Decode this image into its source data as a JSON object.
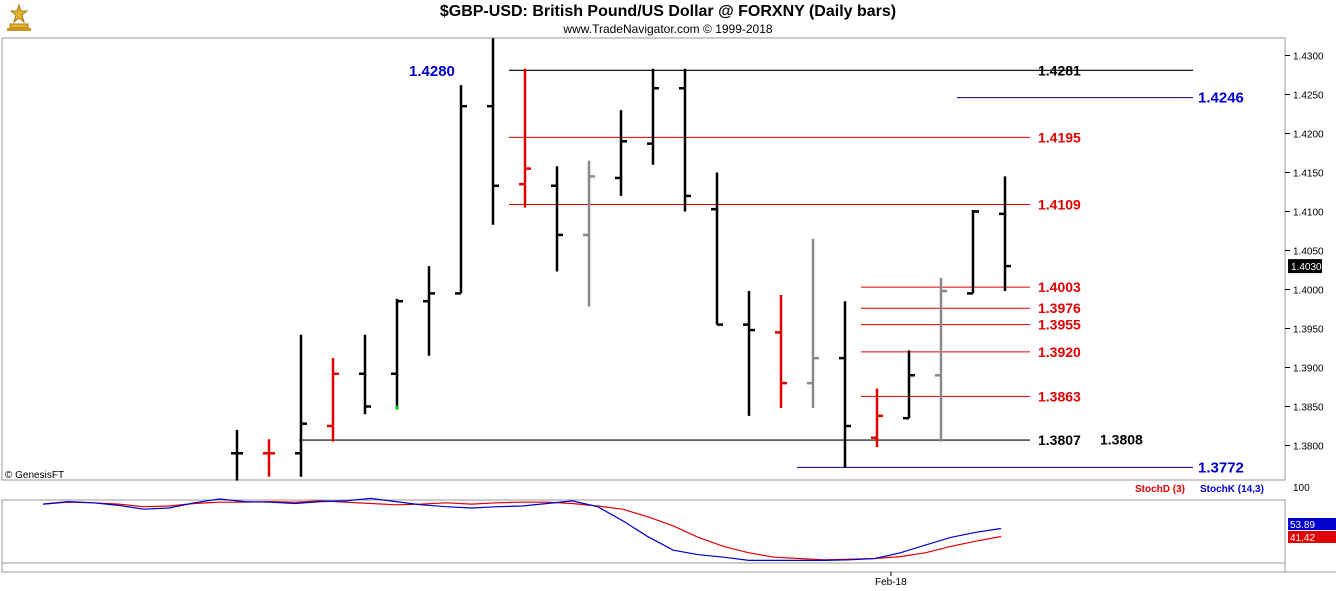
{
  "header": {
    "title": "$GBP-USD:  British Pound/US Dollar @ FORXNY  (Daily bars)",
    "subtitle": "www.TradeNavigator.com © 1999-2018"
  },
  "watermark": "© GenesisFT",
  "colors": {
    "black": "#000000",
    "red": "#e00000",
    "gray": "#8a8a8a",
    "blue": "#0000cc",
    "navy": "#00007a",
    "green": "#00c000"
  },
  "chart_data": [
    {
      "type": "ohlc",
      "title": "$GBP-USD:  British Pound/US Dollar @ FORXNY  (Daily bars)",
      "ylim": [
        1.3745,
        1.432
      ],
      "y_ticks": [
        "1.3800",
        "1.3850",
        "1.3900",
        "1.3950",
        "1.4000",
        "1.4050",
        "1.4100",
        "1.4150",
        "1.4200",
        "1.4250",
        "1.4300"
      ],
      "x_tick_labels": [
        {
          "index": 20,
          "label": "Feb-18"
        }
      ],
      "last_price": "1.4030",
      "bars": [
        {
          "o": 1.379,
          "h": 1.382,
          "l": 1.3755,
          "c": 1.379,
          "color": "black"
        },
        {
          "o": 1.379,
          "h": 1.3808,
          "l": 1.376,
          "c": 1.379,
          "color": "red"
        },
        {
          "o": 1.379,
          "h": 1.3942,
          "l": 1.376,
          "c": 1.3828,
          "color": "black"
        },
        {
          "o": 1.3825,
          "h": 1.3912,
          "l": 1.3805,
          "c": 1.3892,
          "color": "red"
        },
        {
          "o": 1.3892,
          "h": 1.3942,
          "l": 1.384,
          "c": 1.385,
          "color": "black"
        },
        {
          "o": 1.3892,
          "h": 1.3988,
          "l": 1.385,
          "c": 1.3985,
          "color": "black",
          "mark": "green"
        },
        {
          "o": 1.3985,
          "h": 1.403,
          "l": 1.3915,
          "c": 1.3995,
          "color": "black"
        },
        {
          "o": 1.3995,
          "h": 1.4262,
          "l": 1.3995,
          "c": 1.4235,
          "color": "black"
        },
        {
          "o": 1.4235,
          "h": 1.4322,
          "l": 1.4083,
          "c": 1.4133,
          "color": "black"
        },
        {
          "o": 1.4135,
          "h": 1.4283,
          "l": 1.4105,
          "c": 1.4155,
          "color": "red"
        },
        {
          "o": 1.4133,
          "h": 1.4158,
          "l": 1.4023,
          "c": 1.407,
          "color": "black"
        },
        {
          "o": 1.407,
          "h": 1.4165,
          "l": 1.3978,
          "c": 1.4145,
          "color": "gray"
        },
        {
          "o": 1.4143,
          "h": 1.423,
          "l": 1.412,
          "c": 1.419,
          "color": "black"
        },
        {
          "o": 1.4187,
          "h": 1.4283,
          "l": 1.416,
          "c": 1.4258,
          "color": "black"
        },
        {
          "o": 1.4258,
          "h": 1.4283,
          "l": 1.41,
          "c": 1.412,
          "color": "black"
        },
        {
          "o": 1.4103,
          "h": 1.415,
          "l": 1.3955,
          "c": 1.3955,
          "color": "black"
        },
        {
          "o": 1.3955,
          "h": 1.3998,
          "l": 1.3838,
          "c": 1.3948,
          "color": "black"
        },
        {
          "o": 1.3945,
          "h": 1.3993,
          "l": 1.3848,
          "c": 1.388,
          "color": "red"
        },
        {
          "o": 1.388,
          "h": 1.4065,
          "l": 1.3848,
          "c": 1.3912,
          "color": "gray"
        },
        {
          "o": 1.3912,
          "h": 1.3985,
          "l": 1.3772,
          "c": 1.3825,
          "color": "black"
        },
        {
          "o": 1.381,
          "h": 1.3873,
          "l": 1.3798,
          "c": 1.3838,
          "color": "red"
        },
        {
          "o": 1.3835,
          "h": 1.3922,
          "l": 1.3835,
          "c": 1.389,
          "color": "black"
        },
        {
          "o": 1.389,
          "h": 1.4015,
          "l": 1.3805,
          "c": 1.3998,
          "color": "gray"
        },
        {
          "o": 1.3995,
          "h": 1.4102,
          "l": 1.3995,
          "c": 1.41,
          "color": "black"
        },
        {
          "o": 1.4097,
          "h": 1.4145,
          "l": 1.3998,
          "c": 1.403,
          "color": "black"
        }
      ],
      "levels": [
        {
          "value": 1.4281,
          "label": "1.4281",
          "color": "black",
          "from": 8,
          "to": "right"
        },
        {
          "value": 1.4246,
          "label": "1.4246",
          "color": "blue",
          "from": 22,
          "to": "right"
        },
        {
          "value": 1.4195,
          "label": "1.4195",
          "color": "red",
          "from": 8,
          "to": "mid"
        },
        {
          "value": 1.4109,
          "label": "1.4109",
          "color": "red",
          "from": 8,
          "to": "mid"
        },
        {
          "value": 1.4003,
          "label": "1.4003",
          "color": "red",
          "from": 19,
          "to": "mid"
        },
        {
          "value": 1.3976,
          "label": "1.3976",
          "color": "red",
          "from": 19,
          "to": "mid"
        },
        {
          "value": 1.3955,
          "label": "1.3955",
          "color": "red",
          "from": 19,
          "to": "mid"
        },
        {
          "value": 1.392,
          "label": "1.3920",
          "color": "red",
          "from": 19,
          "to": "mid"
        },
        {
          "value": 1.3863,
          "label": "1.3863",
          "color": "red",
          "from": 19,
          "to": "mid"
        },
        {
          "value": 1.3807,
          "label": "1.3807",
          "color": "black",
          "from": 1,
          "to": "mid"
        },
        {
          "value": 1.3772,
          "label": "1.3772",
          "color": "blue",
          "from": 17,
          "to": "right"
        }
      ],
      "extra_labels": [
        {
          "value": 1.428,
          "label": "1.4280",
          "color": "blue",
          "at": "left"
        },
        {
          "value": 1.3808,
          "label": "1.3808",
          "color": "black",
          "at": "after-1.3807"
        }
      ]
    },
    {
      "type": "line",
      "title": "Stochastic",
      "ylim": [
        0,
        100
      ],
      "y_ticks": [
        "100"
      ],
      "series": [
        {
          "name": "StochD (3)",
          "color": "red",
          "values": [
            92,
            95,
            94,
            92,
            88,
            89,
            93,
            95,
            95,
            96,
            95,
            97,
            95,
            93,
            91,
            92,
            94,
            92,
            94,
            95,
            95,
            93,
            89,
            84,
            72,
            58,
            40,
            26,
            16,
            9,
            7,
            5,
            6,
            7,
            10,
            16,
            26,
            34,
            41.42
          ]
        },
        {
          "name": "StochK (14,3)",
          "color": "blue",
          "values": [
            92,
            96,
            94,
            90,
            84,
            86,
            94,
            100,
            96,
            95,
            93,
            96,
            97,
            101,
            96,
            91,
            88,
            86,
            88,
            89,
            93,
            97,
            88,
            66,
            41,
            20,
            13,
            9,
            4,
            4,
            4,
            4,
            5,
            7,
            16,
            28,
            40,
            48,
            53.89
          ]
        }
      ],
      "last_values": [
        "53.89",
        "41.42"
      ]
    }
  ]
}
